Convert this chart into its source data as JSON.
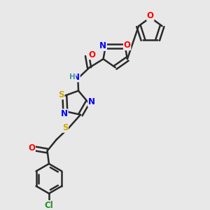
{
  "background_color": "#e8e8e8",
  "bond_color": "#2a2a2a",
  "bond_width": 1.8,
  "atom_colors": {
    "N": "#0000ff",
    "O": "#ff0000",
    "S": "#ccaa00",
    "Cl": "#228b22",
    "H": "#4a8fa0",
    "C": "#2a2a2a"
  },
  "font_size": 8.5,
  "small_font_size": 7.5
}
